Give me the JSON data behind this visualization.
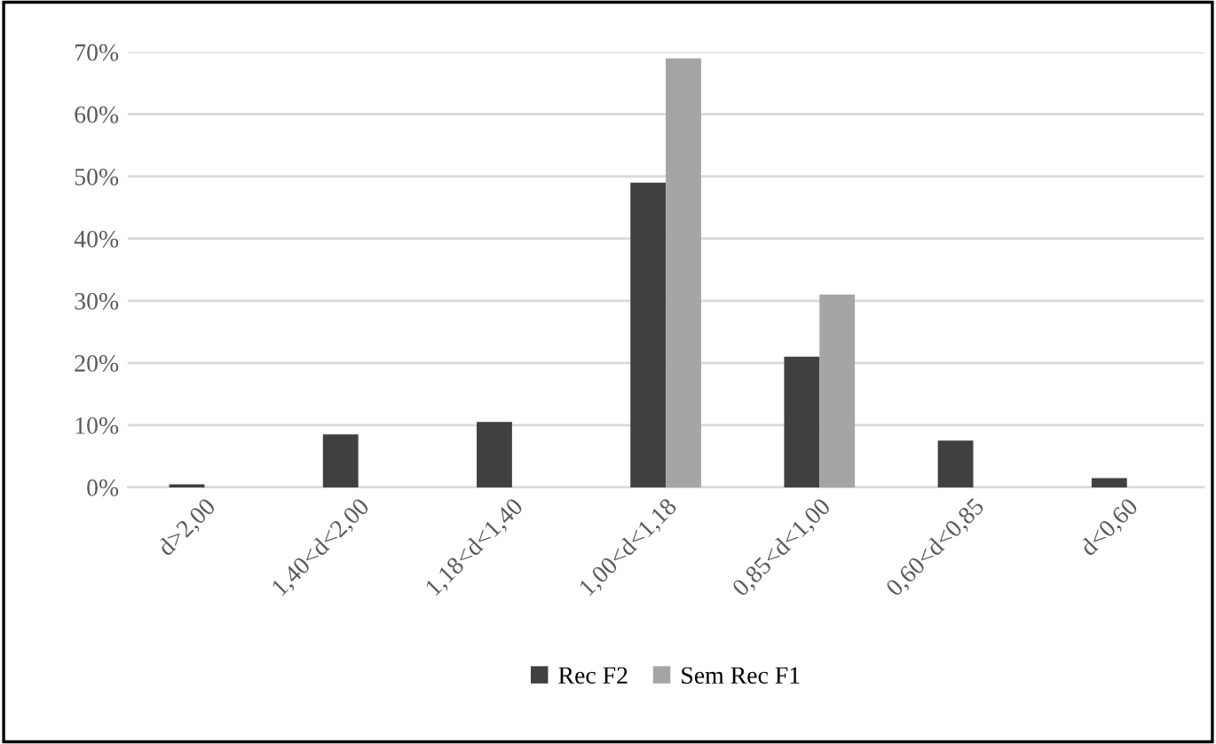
{
  "chart_data": {
    "type": "bar",
    "categories": [
      "d>2,00",
      "1,40<d<2,00",
      "1,18<d<1,40",
      "1,00<d<1,18",
      "0,85<d<1,00",
      "0,60<d<0,85",
      "d<0,60"
    ],
    "series": [
      {
        "name": "Rec F2",
        "color": "#404040",
        "values": [
          0.5,
          8.5,
          10.5,
          49,
          21,
          7.5,
          1.5
        ]
      },
      {
        "name": "Sem Rec F1",
        "color": "#a5a5a5",
        "values": [
          0,
          0,
          0,
          69,
          31,
          0,
          0
        ]
      }
    ],
    "ylim": [
      0,
      70
    ],
    "yticks": [
      {
        "value": 0,
        "label": "0%"
      },
      {
        "value": 10,
        "label": "10%"
      },
      {
        "value": 20,
        "label": "20%"
      },
      {
        "value": 30,
        "label": "30%"
      },
      {
        "value": 40,
        "label": "40%"
      },
      {
        "value": 50,
        "label": "50%"
      },
      {
        "value": 60,
        "label": "60%"
      },
      {
        "value": 70,
        "label": "70%"
      }
    ],
    "grid": "y",
    "legend": "bottom"
  }
}
